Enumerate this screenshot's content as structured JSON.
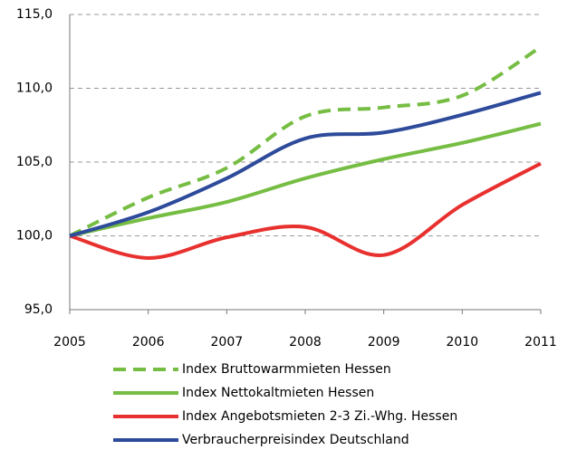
{
  "chart_data": {
    "type": "line",
    "x": [
      2005,
      2006,
      2007,
      2008,
      2009,
      2010,
      2011
    ],
    "xlim": [
      2005,
      2011
    ],
    "ylim": [
      95,
      115
    ],
    "yticks": [
      {
        "value": 95,
        "label": "95,0"
      },
      {
        "value": 100,
        "label": "100,0"
      },
      {
        "value": 105,
        "label": "105,0"
      },
      {
        "value": 110,
        "label": "110,0"
      },
      {
        "value": 115,
        "label": "115,0"
      }
    ],
    "grid": true,
    "legend": "bottom",
    "series": [
      {
        "name": "Index Bruttowarmmieten Hessen",
        "color": "#76bd43",
        "dashed": true,
        "values": [
          100,
          102.6,
          104.6,
          108.1,
          108.7,
          109.5,
          112.8
        ]
      },
      {
        "name": "Index Nettokaltmieten Hessen",
        "color": "#76bd43",
        "values": [
          100,
          101.2,
          102.3,
          103.9,
          105.2,
          106.3,
          107.6
        ]
      },
      {
        "name": "Index Angebotsmieten 2-3 Zi.-Whg. Hessen",
        "color": "#e8312f",
        "values": [
          100,
          98.5,
          99.9,
          100.6,
          98.7,
          102.1,
          104.9
        ]
      },
      {
        "name": "Verbraucherpreisindex Deutschland",
        "color": "#2e4b9b",
        "values": [
          100,
          101.6,
          103.9,
          106.6,
          107.0,
          108.2,
          109.7
        ]
      }
    ]
  }
}
